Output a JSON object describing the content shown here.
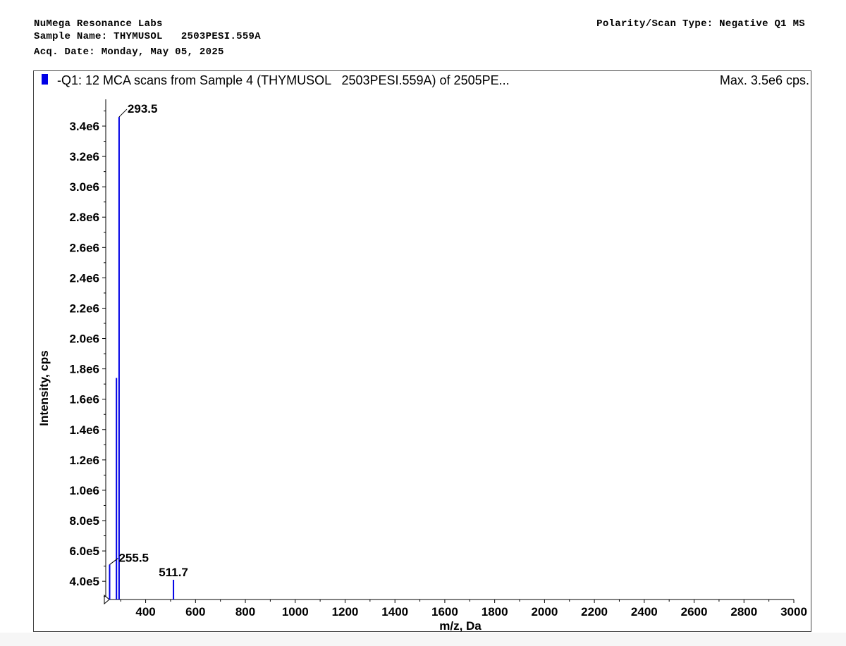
{
  "header": {
    "lab": "NuMega Resonance Labs",
    "sample_line": "Sample Name: THYMUSOL   2503PESI.559A",
    "acq_line": "Acq. Date: Monday, May 05, 2025",
    "polarity_line": "Polarity/Scan Type: Negative Q1 MS"
  },
  "plot": {
    "title": "-Q1: 12 MCA scans from Sample 4 (THYMUSOL   2503PESI.559A) of 2505PE...",
    "max_label": "Max. 3.5e6 cps."
  },
  "colors": {
    "series": "#0000e6",
    "legend": "#0000e6"
  },
  "chart_data": {
    "type": "bar",
    "xlabel": "m/z, Da",
    "ylabel": "Intensity, cps",
    "xlim": [
      240,
      3000
    ],
    "ylim": [
      280000,
      3530000
    ],
    "x_ticks": [
      400,
      600,
      800,
      1000,
      1200,
      1400,
      1600,
      1800,
      2000,
      2200,
      2400,
      2600,
      2800,
      3000
    ],
    "x_tick_labels": [
      "400",
      "600",
      "800",
      "1000",
      "1200",
      "1400",
      "1600",
      "1800",
      "2000",
      "2200",
      "2400",
      "2600",
      "2800",
      "3000"
    ],
    "y_ticks": [
      400000,
      600000,
      800000,
      1000000,
      1200000,
      1400000,
      1600000,
      1800000,
      2000000,
      2200000,
      2400000,
      2600000,
      2800000,
      3000000,
      3200000,
      3400000
    ],
    "y_tick_labels": [
      "4.0e5",
      "6.0e5",
      "8.0e5",
      "1.0e6",
      "1.2e6",
      "1.4e6",
      "1.6e6",
      "1.8e6",
      "2.0e6",
      "2.2e6",
      "2.4e6",
      "2.6e6",
      "2.8e6",
      "3.0e6",
      "3.2e6",
      "3.4e6"
    ],
    "peaks": [
      {
        "mz": 255.5,
        "intensity": 510000
      },
      {
        "mz": 283.0,
        "intensity": 1740000
      },
      {
        "mz": 293.5,
        "intensity": 3460000
      },
      {
        "mz": 511.7,
        "intensity": 410000
      }
    ],
    "peak_labels": [
      {
        "mz": 293.5,
        "text": "293.5"
      },
      {
        "mz": 255.5,
        "text": "255.5"
      },
      {
        "mz": 511.7,
        "text": "511.7"
      }
    ],
    "grid": false,
    "legend": "top-left"
  }
}
